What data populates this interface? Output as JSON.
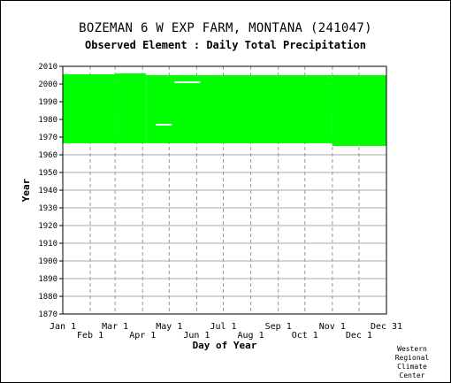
{
  "chart_data": {
    "type": "area",
    "title": "BOZEMAN 6 W EXP FARM, MONTANA   (241047)",
    "subtitle": "Observed Element : Daily Total Precipitation",
    "xlabel": "Day of Year",
    "ylabel": "Year",
    "xlim": [
      1,
      366
    ],
    "ylim": [
      1870,
      2010
    ],
    "y_ticks": [
      1870,
      1880,
      1890,
      1900,
      1910,
      1920,
      1930,
      1940,
      1950,
      1960,
      1970,
      1980,
      1990,
      2000,
      2010
    ],
    "x_ticks_upper": [
      {
        "label": "Jan 1",
        "day": 1
      },
      {
        "label": "Mar 1",
        "day": 60
      },
      {
        "label": "May 1",
        "day": 121
      },
      {
        "label": "Jul 1",
        "day": 182
      },
      {
        "label": "Sep 1",
        "day": 244
      },
      {
        "label": "Nov 1",
        "day": 305
      },
      {
        "label": "Dec 31",
        "day": 366
      }
    ],
    "x_ticks_lower": [
      {
        "label": "Feb 1",
        "day": 32
      },
      {
        "label": "Apr 1",
        "day": 91
      },
      {
        "label": "Jun 1",
        "day": 152
      },
      {
        "label": "Aug 1",
        "day": 213
      },
      {
        "label": "Oct 1",
        "day": 274
      },
      {
        "label": "Dec 1",
        "day": 335
      }
    ],
    "grid": true,
    "series": [
      {
        "coverage": [
          {
            "day_start": 1,
            "day_end": 60,
            "year_start": 1966.5,
            "year_end": 2005.5
          },
          {
            "day_start": 60,
            "day_end": 95,
            "year_start": 1966.5,
            "year_end": 2006
          },
          {
            "day_start": 95,
            "day_end": 305,
            "year_start": 1966.5,
            "year_end": 2005
          },
          {
            "day_start": 305,
            "day_end": 366,
            "year_start": 1965,
            "year_end": 2005
          }
        ],
        "gaps": [
          {
            "day_start": 106,
            "day_end": 124,
            "year": 1977
          },
          {
            "day_start": 127,
            "day_end": 156,
            "year": 2001
          }
        ],
        "color": "#00ff00"
      }
    ]
  },
  "credit": [
    "Western",
    "Regional",
    "Climate",
    "Center"
  ]
}
